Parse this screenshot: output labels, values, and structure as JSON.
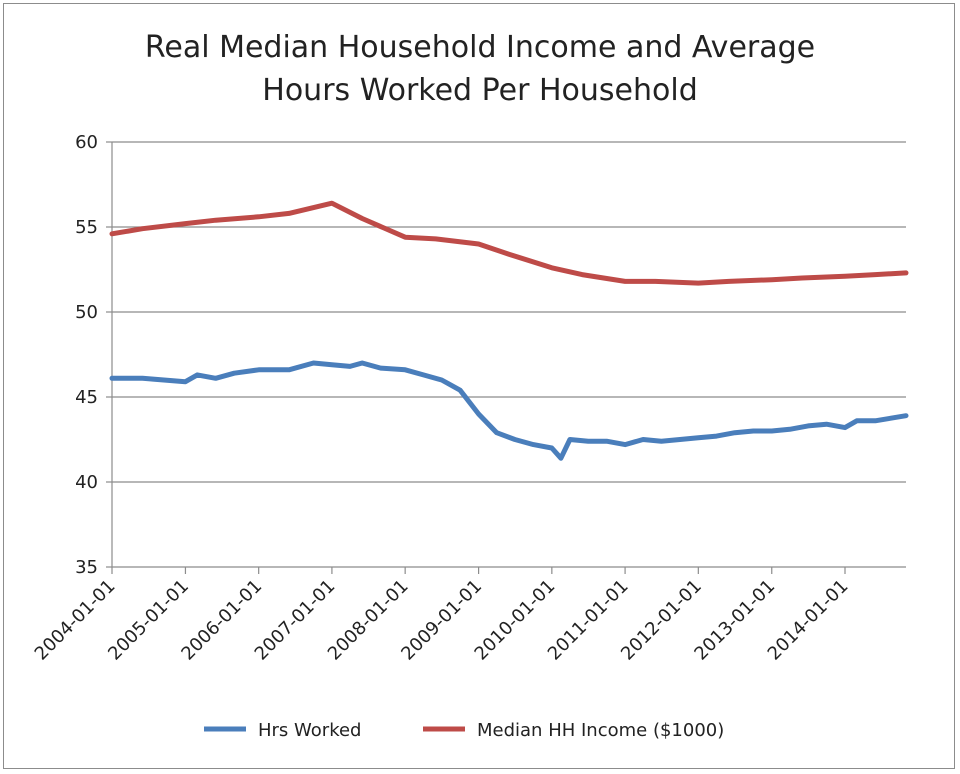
{
  "chart_data": {
    "type": "line",
    "title": "Real Median Household Income and Average Hours Worked Per Household",
    "title_lines": [
      "Real Median Household Income and Average",
      "Hours Worked Per Household"
    ],
    "xlabel": "",
    "ylabel": "",
    "ylim": [
      35,
      60
    ],
    "yticks": [
      "35",
      "40",
      "45",
      "50",
      "55",
      "60"
    ],
    "xlim": [
      "2004-01-01",
      "2014-11-01"
    ],
    "xticks": [
      "2004-01-01",
      "2005-01-01",
      "2006-01-01",
      "2007-01-01",
      "2008-01-01",
      "2009-01-01",
      "2010-01-01",
      "2011-01-01",
      "2012-01-01",
      "2013-01-01",
      "2014-01-01"
    ],
    "grid": "horizontal",
    "legend": "bottom",
    "series": [
      {
        "name": "Hrs Worked",
        "color": "#4a7ebb",
        "points": [
          [
            "2004-01-01",
            46.1
          ],
          [
            "2004-06-01",
            46.1
          ],
          [
            "2005-01-01",
            45.9
          ],
          [
            "2005-03-01",
            46.3
          ],
          [
            "2005-06-01",
            46.1
          ],
          [
            "2005-09-01",
            46.4
          ],
          [
            "2006-01-01",
            46.6
          ],
          [
            "2006-06-01",
            46.6
          ],
          [
            "2006-10-01",
            47.0
          ],
          [
            "2007-01-01",
            46.9
          ],
          [
            "2007-04-01",
            46.8
          ],
          [
            "2007-06-01",
            47.0
          ],
          [
            "2007-09-01",
            46.7
          ],
          [
            "2008-01-01",
            46.6
          ],
          [
            "2008-04-01",
            46.3
          ],
          [
            "2008-07-01",
            46.0
          ],
          [
            "2008-10-01",
            45.4
          ],
          [
            "2009-01-01",
            44.0
          ],
          [
            "2009-04-01",
            42.9
          ],
          [
            "2009-07-01",
            42.5
          ],
          [
            "2009-10-01",
            42.2
          ],
          [
            "2010-01-01",
            42.0
          ],
          [
            "2010-02-15",
            41.4
          ],
          [
            "2010-04-01",
            42.5
          ],
          [
            "2010-07-01",
            42.4
          ],
          [
            "2010-10-01",
            42.4
          ],
          [
            "2011-01-01",
            42.2
          ],
          [
            "2011-04-01",
            42.5
          ],
          [
            "2011-07-01",
            42.4
          ],
          [
            "2011-10-01",
            42.5
          ],
          [
            "2012-01-01",
            42.6
          ],
          [
            "2012-04-01",
            42.7
          ],
          [
            "2012-07-01",
            42.9
          ],
          [
            "2012-10-01",
            43.0
          ],
          [
            "2013-01-01",
            43.0
          ],
          [
            "2013-04-01",
            43.1
          ],
          [
            "2013-07-01",
            43.3
          ],
          [
            "2013-10-01",
            43.4
          ],
          [
            "2014-01-01",
            43.2
          ],
          [
            "2014-03-01",
            43.6
          ],
          [
            "2014-06-01",
            43.6
          ],
          [
            "2014-11-01",
            43.9
          ]
        ]
      },
      {
        "name": "Median HH Income ($1000)",
        "color": "#be4b48",
        "points": [
          [
            "2004-01-01",
            54.6
          ],
          [
            "2004-06-01",
            54.9
          ],
          [
            "2005-01-01",
            55.2
          ],
          [
            "2005-06-01",
            55.4
          ],
          [
            "2006-01-01",
            55.6
          ],
          [
            "2006-06-01",
            55.8
          ],
          [
            "2007-01-01",
            56.4
          ],
          [
            "2007-06-01",
            55.5
          ],
          [
            "2008-01-01",
            54.4
          ],
          [
            "2008-06-01",
            54.3
          ],
          [
            "2009-01-01",
            54.0
          ],
          [
            "2009-06-01",
            53.4
          ],
          [
            "2010-01-01",
            52.6
          ],
          [
            "2010-06-01",
            52.2
          ],
          [
            "2011-01-01",
            51.8
          ],
          [
            "2011-06-01",
            51.8
          ],
          [
            "2012-01-01",
            51.7
          ],
          [
            "2012-06-01",
            51.8
          ],
          [
            "2013-01-01",
            51.9
          ],
          [
            "2013-06-01",
            52.0
          ],
          [
            "2014-01-01",
            52.1
          ],
          [
            "2014-06-01",
            52.2
          ],
          [
            "2014-11-01",
            52.3
          ]
        ]
      }
    ]
  }
}
